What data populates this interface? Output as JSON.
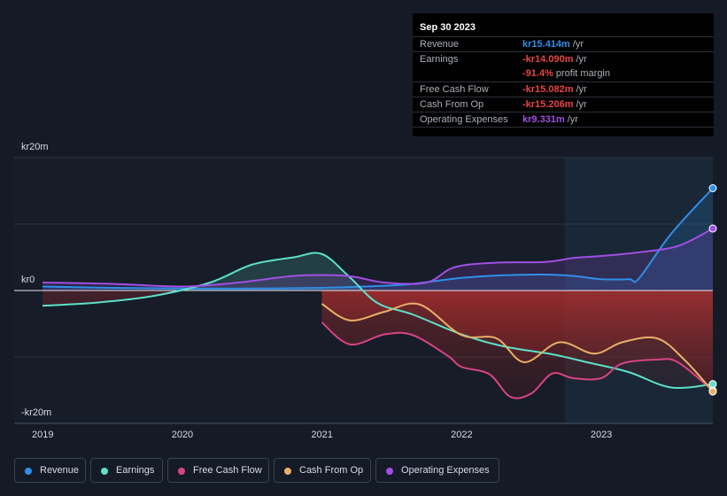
{
  "chart_data": {
    "type": "line",
    "title": "",
    "xlabel": "",
    "ylabel": "",
    "currency_prefix": "kr",
    "ylim": [
      -20,
      20
    ],
    "xlim": [
      2019,
      2023.8
    ],
    "highlight_start": 2022.74,
    "y_tick_labels": [
      {
        "label": "kr20m",
        "value": 20
      },
      {
        "label": "kr0",
        "value": 0
      },
      {
        "label": "-kr20m",
        "value": -20
      }
    ],
    "x_tick_labels": [
      {
        "label": "2019",
        "value": 2019
      },
      {
        "label": "2020",
        "value": 2020
      },
      {
        "label": "2021",
        "value": 2021
      },
      {
        "label": "2022",
        "value": 2022
      },
      {
        "label": "2023",
        "value": 2023
      }
    ],
    "series": [
      {
        "name": "Revenue",
        "color": "#2f8fe8",
        "fill": "above",
        "points": [
          [
            2019,
            0.6
          ],
          [
            2019.5,
            0.4
          ],
          [
            2020,
            0.3
          ],
          [
            2020.5,
            0.3
          ],
          [
            2021,
            0.4
          ],
          [
            2021.3,
            0.6
          ],
          [
            2021.6,
            0.9
          ],
          [
            2022,
            1.9
          ],
          [
            2022.3,
            2.3
          ],
          [
            2022.6,
            2.4
          ],
          [
            2022.8,
            2.2
          ],
          [
            2023.0,
            1.7
          ],
          [
            2023.2,
            1.7
          ],
          [
            2023.27,
            1.8
          ],
          [
            2023.5,
            8.5
          ],
          [
            2023.8,
            15.4
          ]
        ]
      },
      {
        "name": "Earnings",
        "color": "#5de0c8",
        "fill": "both",
        "points": [
          [
            2019,
            -2.3
          ],
          [
            2019.4,
            -1.8
          ],
          [
            2019.8,
            -0.8
          ],
          [
            2020.2,
            1.2
          ],
          [
            2020.5,
            3.9
          ],
          [
            2020.8,
            5.0
          ],
          [
            2021,
            5.5
          ],
          [
            2021.2,
            2.0
          ],
          [
            2021.4,
            -1.9
          ],
          [
            2021.65,
            -3.6
          ],
          [
            2022,
            -6.6
          ],
          [
            2022.3,
            -8.4
          ],
          [
            2022.65,
            -9.6
          ],
          [
            2022.9,
            -10.8
          ],
          [
            2023.2,
            -12.3
          ],
          [
            2023.5,
            -14.6
          ],
          [
            2023.8,
            -14.09
          ]
        ]
      },
      {
        "name": "Free Cash Flow",
        "color": "#d94383",
        "fill": "below",
        "points": [
          [
            2021,
            -4.8
          ],
          [
            2021.2,
            -8.1
          ],
          [
            2021.45,
            -6.6
          ],
          [
            2021.65,
            -6.7
          ],
          [
            2021.9,
            -9.8
          ],
          [
            2022,
            -11.5
          ],
          [
            2022.2,
            -12.6
          ],
          [
            2022.35,
            -16.0
          ],
          [
            2022.5,
            -15.5
          ],
          [
            2022.65,
            -12.5
          ],
          [
            2022.8,
            -13.2
          ],
          [
            2023,
            -13.2
          ],
          [
            2023.15,
            -11.0
          ],
          [
            2023.4,
            -10.4
          ],
          [
            2023.55,
            -10.8
          ],
          [
            2023.8,
            -15.08
          ]
        ]
      },
      {
        "name": "Cash From Op",
        "color": "#e8b068",
        "fill": "below",
        "points": [
          [
            2021,
            -2.0
          ],
          [
            2021.2,
            -4.5
          ],
          [
            2021.45,
            -3.2
          ],
          [
            2021.7,
            -2.1
          ],
          [
            2022,
            -6.7
          ],
          [
            2022.25,
            -7.2
          ],
          [
            2022.45,
            -10.8
          ],
          [
            2022.7,
            -7.8
          ],
          [
            2022.95,
            -9.5
          ],
          [
            2023.15,
            -7.8
          ],
          [
            2023.4,
            -7.2
          ],
          [
            2023.6,
            -10.5
          ],
          [
            2023.8,
            -15.21
          ]
        ]
      },
      {
        "name": "Operating Expenses",
        "color": "#a04fe2",
        "fill": "above",
        "points": [
          [
            2019,
            1.2
          ],
          [
            2019.5,
            1.0
          ],
          [
            2020,
            0.6
          ],
          [
            2020.4,
            1.2
          ],
          [
            2020.8,
            2.2
          ],
          [
            2021.1,
            2.3
          ],
          [
            2021.25,
            2.0
          ],
          [
            2021.45,
            1.2
          ],
          [
            2021.75,
            1.2
          ],
          [
            2021.95,
            3.5
          ],
          [
            2022.25,
            4.2
          ],
          [
            2022.6,
            4.3
          ],
          [
            2022.8,
            4.9
          ],
          [
            2023.0,
            5.2
          ],
          [
            2023.25,
            5.7
          ],
          [
            2023.55,
            6.7
          ],
          [
            2023.8,
            9.33
          ]
        ]
      }
    ]
  },
  "tooltip": {
    "date": "Sep 30 2023",
    "rows": [
      {
        "label": "Revenue",
        "value": "kr15.414m",
        "suffix": "/yr",
        "color": "#2f8fe8"
      },
      {
        "label": "Earnings",
        "value": "-kr14.090m",
        "suffix": "/yr",
        "color": "#e84545"
      },
      {
        "label": "",
        "value": "-91.4%",
        "suffix": "profit margin",
        "color": "#e84545"
      },
      {
        "label": "Free Cash Flow",
        "value": "-kr15.082m",
        "suffix": "/yr",
        "color": "#e84545"
      },
      {
        "label": "Cash From Op",
        "value": "-kr15.206m",
        "suffix": "/yr",
        "color": "#e84545"
      },
      {
        "label": "Operating Expenses",
        "value": "kr9.331m",
        "suffix": "/yr",
        "color": "#a04fe2"
      }
    ]
  },
  "legend": [
    {
      "label": "Revenue",
      "color": "#2f8fe8"
    },
    {
      "label": "Earnings",
      "color": "#5de0c8"
    },
    {
      "label": "Free Cash Flow",
      "color": "#d94383"
    },
    {
      "label": "Cash From Op",
      "color": "#e8b068"
    },
    {
      "label": "Operating Expenses",
      "color": "#a04fe2"
    }
  ]
}
